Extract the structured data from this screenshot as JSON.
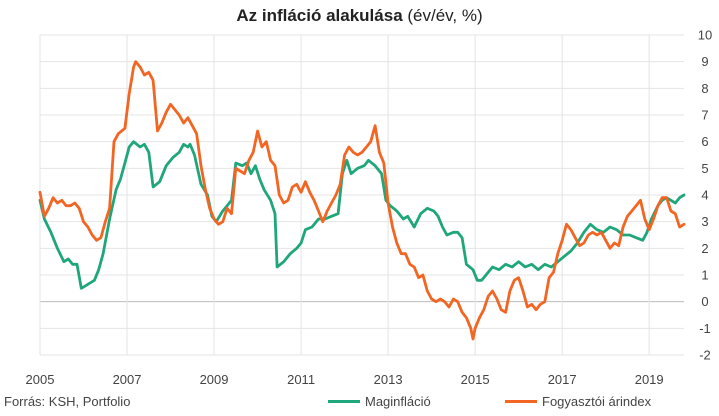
{
  "title": {
    "bold": "Az infláció alakulása",
    "rest": " (év/év, %)"
  },
  "source": "Forrás: KSH, Portfolio",
  "colors": {
    "core": "#1fa67a",
    "cpi": "#f26522",
    "grid": "#e4e4e4",
    "axis": "#bbbbbb"
  },
  "chart_data": {
    "type": "line",
    "title": "Az infláció alakulása (év/év, %)",
    "xlabel": "",
    "ylabel": "",
    "y_axis_position": "right",
    "grid": true,
    "legend_position": "bottom-right",
    "ylim": [
      -2,
      10
    ],
    "yticks": [
      -2,
      -1,
      0,
      1,
      2,
      3,
      4,
      5,
      6,
      7,
      8,
      9,
      10
    ],
    "xlim": [
      2005,
      2019.8
    ],
    "xticks": [
      2005,
      2007,
      2009,
      2011,
      2013,
      2015,
      2017,
      2019
    ],
    "series": [
      {
        "name": "Maginfláció",
        "color": "#1fa67a",
        "points": [
          [
            2005.0,
            3.8
          ],
          [
            2005.1,
            3.1
          ],
          [
            2005.25,
            2.6
          ],
          [
            2005.4,
            2.0
          ],
          [
            2005.55,
            1.5
          ],
          [
            2005.65,
            1.6
          ],
          [
            2005.75,
            1.4
          ],
          [
            2005.85,
            1.4
          ],
          [
            2005.95,
            0.5
          ],
          [
            2006.05,
            0.6
          ],
          [
            2006.15,
            0.7
          ],
          [
            2006.25,
            0.8
          ],
          [
            2006.35,
            1.2
          ],
          [
            2006.45,
            1.8
          ],
          [
            2006.6,
            3.1
          ],
          [
            2006.75,
            4.2
          ],
          [
            2006.85,
            4.6
          ],
          [
            2006.95,
            5.2
          ],
          [
            2007.05,
            5.8
          ],
          [
            2007.15,
            6.0
          ],
          [
            2007.3,
            5.8
          ],
          [
            2007.4,
            5.9
          ],
          [
            2007.5,
            5.6
          ],
          [
            2007.6,
            4.3
          ],
          [
            2007.75,
            4.5
          ],
          [
            2007.9,
            5.1
          ],
          [
            2008.05,
            5.4
          ],
          [
            2008.2,
            5.6
          ],
          [
            2008.3,
            5.9
          ],
          [
            2008.4,
            5.8
          ],
          [
            2008.45,
            5.9
          ],
          [
            2008.55,
            5.5
          ],
          [
            2008.7,
            4.4
          ],
          [
            2008.85,
            4.0
          ],
          [
            2008.95,
            3.2
          ],
          [
            2009.05,
            3.0
          ],
          [
            2009.2,
            3.4
          ],
          [
            2009.3,
            3.6
          ],
          [
            2009.4,
            3.8
          ],
          [
            2009.5,
            5.2
          ],
          [
            2009.65,
            5.1
          ],
          [
            2009.75,
            5.2
          ],
          [
            2009.85,
            4.8
          ],
          [
            2009.95,
            5.1
          ],
          [
            2010.05,
            4.6
          ],
          [
            2010.15,
            4.2
          ],
          [
            2010.3,
            3.8
          ],
          [
            2010.4,
            3.3
          ],
          [
            2010.45,
            1.3
          ],
          [
            2010.6,
            1.5
          ],
          [
            2010.75,
            1.8
          ],
          [
            2010.9,
            2.0
          ],
          [
            2011.0,
            2.2
          ],
          [
            2011.1,
            2.7
          ],
          [
            2011.25,
            2.8
          ],
          [
            2011.4,
            3.1
          ],
          [
            2011.55,
            3.1
          ],
          [
            2011.7,
            3.2
          ],
          [
            2011.85,
            3.3
          ],
          [
            2011.95,
            4.8
          ],
          [
            2012.05,
            5.3
          ],
          [
            2012.15,
            4.8
          ],
          [
            2012.3,
            5.0
          ],
          [
            2012.45,
            5.1
          ],
          [
            2012.55,
            5.3
          ],
          [
            2012.7,
            5.1
          ],
          [
            2012.85,
            4.8
          ],
          [
            2012.95,
            3.8
          ],
          [
            2013.05,
            3.6
          ],
          [
            2013.2,
            3.4
          ],
          [
            2013.35,
            3.1
          ],
          [
            2013.45,
            3.2
          ],
          [
            2013.6,
            2.8
          ],
          [
            2013.75,
            3.3
          ],
          [
            2013.9,
            3.5
          ],
          [
            2014.05,
            3.4
          ],
          [
            2014.15,
            3.2
          ],
          [
            2014.25,
            2.8
          ],
          [
            2014.35,
            2.5
          ],
          [
            2014.5,
            2.6
          ],
          [
            2014.6,
            2.6
          ],
          [
            2014.7,
            2.4
          ],
          [
            2014.8,
            1.4
          ],
          [
            2014.95,
            1.2
          ],
          [
            2015.05,
            0.8
          ],
          [
            2015.15,
            0.8
          ],
          [
            2015.25,
            1.0
          ],
          [
            2015.4,
            1.3
          ],
          [
            2015.55,
            1.2
          ],
          [
            2015.7,
            1.4
          ],
          [
            2015.85,
            1.3
          ],
          [
            2016.0,
            1.5
          ],
          [
            2016.15,
            1.3
          ],
          [
            2016.3,
            1.4
          ],
          [
            2016.45,
            1.2
          ],
          [
            2016.6,
            1.4
          ],
          [
            2016.75,
            1.3
          ],
          [
            2016.9,
            1.5
          ],
          [
            2017.05,
            1.7
          ],
          [
            2017.2,
            1.9
          ],
          [
            2017.35,
            2.2
          ],
          [
            2017.5,
            2.6
          ],
          [
            2017.65,
            2.9
          ],
          [
            2017.8,
            2.7
          ],
          [
            2017.95,
            2.6
          ],
          [
            2018.1,
            2.8
          ],
          [
            2018.25,
            2.7
          ],
          [
            2018.4,
            2.5
          ],
          [
            2018.55,
            2.5
          ],
          [
            2018.7,
            2.4
          ],
          [
            2018.85,
            2.3
          ],
          [
            2018.95,
            2.6
          ],
          [
            2019.05,
            3.1
          ],
          [
            2019.2,
            3.6
          ],
          [
            2019.3,
            3.8
          ],
          [
            2019.4,
            3.9
          ],
          [
            2019.5,
            3.8
          ],
          [
            2019.6,
            3.7
          ],
          [
            2019.7,
            3.9
          ],
          [
            2019.8,
            4.0
          ]
        ]
      },
      {
        "name": "Fogyasztói árindex",
        "color": "#f26522",
        "points": [
          [
            2005.0,
            4.1
          ],
          [
            2005.1,
            3.2
          ],
          [
            2005.2,
            3.5
          ],
          [
            2005.3,
            3.9
          ],
          [
            2005.4,
            3.7
          ],
          [
            2005.5,
            3.8
          ],
          [
            2005.6,
            3.6
          ],
          [
            2005.7,
            3.6
          ],
          [
            2005.8,
            3.7
          ],
          [
            2005.9,
            3.5
          ],
          [
            2006.0,
            3.0
          ],
          [
            2006.1,
            2.8
          ],
          [
            2006.2,
            2.5
          ],
          [
            2006.3,
            2.3
          ],
          [
            2006.4,
            2.4
          ],
          [
            2006.5,
            3.0
          ],
          [
            2006.6,
            3.5
          ],
          [
            2006.7,
            6.0
          ],
          [
            2006.8,
            6.3
          ],
          [
            2006.95,
            6.5
          ],
          [
            2007.05,
            7.8
          ],
          [
            2007.15,
            8.8
          ],
          [
            2007.2,
            9.0
          ],
          [
            2007.3,
            8.8
          ],
          [
            2007.4,
            8.5
          ],
          [
            2007.5,
            8.6
          ],
          [
            2007.6,
            8.3
          ],
          [
            2007.7,
            6.4
          ],
          [
            2007.8,
            6.7
          ],
          [
            2007.9,
            7.1
          ],
          [
            2008.0,
            7.4
          ],
          [
            2008.1,
            7.2
          ],
          [
            2008.2,
            7.0
          ],
          [
            2008.3,
            6.7
          ],
          [
            2008.4,
            6.9
          ],
          [
            2008.5,
            6.6
          ],
          [
            2008.6,
            6.3
          ],
          [
            2008.7,
            5.1
          ],
          [
            2008.8,
            4.2
          ],
          [
            2008.9,
            3.5
          ],
          [
            2009.0,
            3.1
          ],
          [
            2009.1,
            2.9
          ],
          [
            2009.2,
            3.0
          ],
          [
            2009.3,
            3.5
          ],
          [
            2009.4,
            3.3
          ],
          [
            2009.5,
            5.0
          ],
          [
            2009.6,
            4.9
          ],
          [
            2009.7,
            4.8
          ],
          [
            2009.8,
            5.3
          ],
          [
            2009.9,
            5.6
          ],
          [
            2010.0,
            6.4
          ],
          [
            2010.1,
            5.8
          ],
          [
            2010.2,
            6.0
          ],
          [
            2010.3,
            5.3
          ],
          [
            2010.4,
            5.1
          ],
          [
            2010.5,
            4.0
          ],
          [
            2010.6,
            3.7
          ],
          [
            2010.7,
            3.8
          ],
          [
            2010.8,
            4.3
          ],
          [
            2010.9,
            4.4
          ],
          [
            2011.0,
            4.1
          ],
          [
            2011.1,
            4.5
          ],
          [
            2011.2,
            4.1
          ],
          [
            2011.3,
            3.8
          ],
          [
            2011.4,
            3.4
          ],
          [
            2011.5,
            3.0
          ],
          [
            2011.6,
            3.4
          ],
          [
            2011.7,
            3.7
          ],
          [
            2011.8,
            4.0
          ],
          [
            2011.9,
            4.4
          ],
          [
            2012.0,
            5.5
          ],
          [
            2012.1,
            5.8
          ],
          [
            2012.2,
            5.6
          ],
          [
            2012.3,
            5.5
          ],
          [
            2012.4,
            5.6
          ],
          [
            2012.5,
            5.8
          ],
          [
            2012.6,
            6.0
          ],
          [
            2012.7,
            6.6
          ],
          [
            2012.8,
            5.6
          ],
          [
            2012.9,
            5.2
          ],
          [
            2013.0,
            3.7
          ],
          [
            2013.1,
            2.8
          ],
          [
            2013.2,
            2.2
          ],
          [
            2013.3,
            1.8
          ],
          [
            2013.4,
            1.8
          ],
          [
            2013.5,
            1.4
          ],
          [
            2013.6,
            1.3
          ],
          [
            2013.7,
            0.9
          ],
          [
            2013.8,
            1.0
          ],
          [
            2013.9,
            0.4
          ],
          [
            2014.0,
            0.1
          ],
          [
            2014.1,
            0.0
          ],
          [
            2014.2,
            0.1
          ],
          [
            2014.3,
            0.0
          ],
          [
            2014.4,
            -0.2
          ],
          [
            2014.5,
            0.1
          ],
          [
            2014.6,
            0.0
          ],
          [
            2014.7,
            -0.4
          ],
          [
            2014.8,
            -0.6
          ],
          [
            2014.9,
            -1.0
          ],
          [
            2014.95,
            -1.4
          ],
          [
            2015.0,
            -1.0
          ],
          [
            2015.1,
            -0.6
          ],
          [
            2015.2,
            -0.3
          ],
          [
            2015.3,
            0.2
          ],
          [
            2015.4,
            0.4
          ],
          [
            2015.5,
            0.1
          ],
          [
            2015.6,
            -0.3
          ],
          [
            2015.7,
            -0.4
          ],
          [
            2015.8,
            0.4
          ],
          [
            2015.9,
            0.8
          ],
          [
            2016.0,
            0.9
          ],
          [
            2016.1,
            0.4
          ],
          [
            2016.2,
            -0.2
          ],
          [
            2016.3,
            -0.1
          ],
          [
            2016.4,
            -0.3
          ],
          [
            2016.5,
            -0.1
          ],
          [
            2016.6,
            0.0
          ],
          [
            2016.7,
            0.9
          ],
          [
            2016.8,
            1.1
          ],
          [
            2016.9,
            1.8
          ],
          [
            2017.0,
            2.3
          ],
          [
            2017.1,
            2.9
          ],
          [
            2017.2,
            2.7
          ],
          [
            2017.3,
            2.4
          ],
          [
            2017.4,
            2.1
          ],
          [
            2017.5,
            2.2
          ],
          [
            2017.6,
            2.5
          ],
          [
            2017.7,
            2.6
          ],
          [
            2017.8,
            2.5
          ],
          [
            2017.9,
            2.6
          ],
          [
            2018.0,
            2.3
          ],
          [
            2018.1,
            2.0
          ],
          [
            2018.2,
            2.2
          ],
          [
            2018.3,
            2.1
          ],
          [
            2018.4,
            2.8
          ],
          [
            2018.5,
            3.2
          ],
          [
            2018.6,
            3.4
          ],
          [
            2018.7,
            3.6
          ],
          [
            2018.8,
            3.8
          ],
          [
            2018.9,
            3.1
          ],
          [
            2019.0,
            2.7
          ],
          [
            2019.1,
            3.1
          ],
          [
            2019.2,
            3.6
          ],
          [
            2019.3,
            3.9
          ],
          [
            2019.4,
            3.9
          ],
          [
            2019.5,
            3.4
          ],
          [
            2019.6,
            3.3
          ],
          [
            2019.7,
            2.8
          ],
          [
            2019.8,
            2.9
          ]
        ]
      }
    ]
  }
}
